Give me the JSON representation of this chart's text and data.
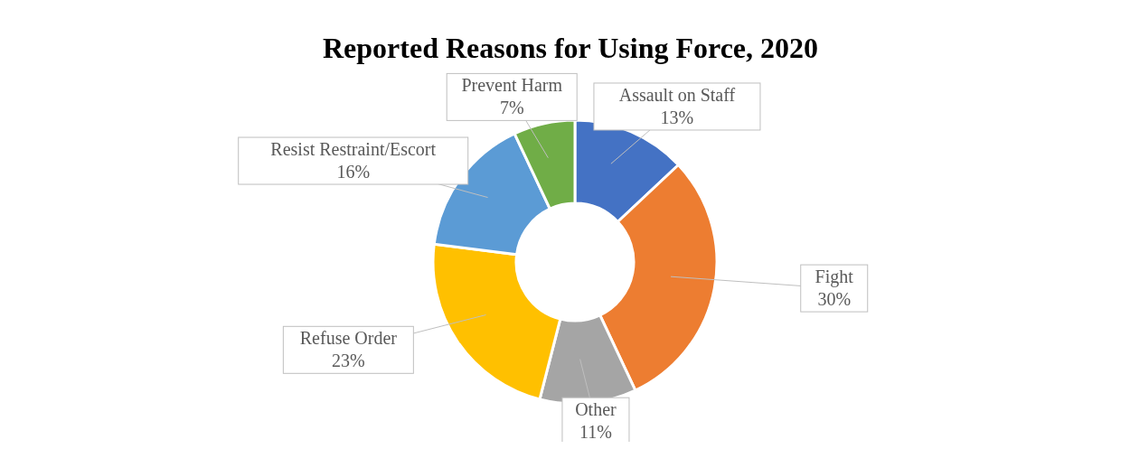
{
  "chart_data": {
    "type": "donut",
    "title": "Reported Reasons for Using Force, 2020",
    "categories": [
      "Assault on Staff",
      "Fight",
      "Other",
      "Refuse Order",
      "Resist Restraint/Escort",
      "Prevent Harm"
    ],
    "values": [
      13,
      30,
      11,
      23,
      16,
      7
    ],
    "value_labels": [
      "13%",
      "30%",
      "11%",
      "23%",
      "16%",
      "7%"
    ],
    "colors": [
      "#4472c4",
      "#ed7d31",
      "#a5a5a5",
      "#ffc000",
      "#5b9bd5",
      "#70ad47"
    ]
  }
}
